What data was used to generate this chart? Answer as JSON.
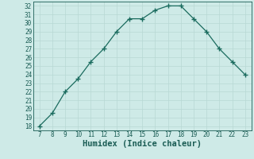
{
  "x": [
    7,
    8,
    9,
    10,
    11,
    12,
    13,
    14,
    15,
    16,
    17,
    18,
    19,
    20,
    21,
    22,
    23
  ],
  "y": [
    18,
    19.5,
    22,
    23.5,
    25.5,
    27,
    29,
    30.5,
    30.5,
    31.5,
    32,
    32,
    30.5,
    29,
    27,
    25.5,
    24
  ],
  "xlabel": "Humidex (Indice chaleur)",
  "xlim_min": 6.5,
  "xlim_max": 23.5,
  "ylim_min": 17.5,
  "ylim_max": 32.5,
  "xticks": [
    7,
    8,
    9,
    10,
    11,
    12,
    13,
    14,
    15,
    16,
    17,
    18,
    19,
    20,
    21,
    22,
    23
  ],
  "yticks": [
    18,
    19,
    20,
    21,
    22,
    23,
    24,
    25,
    26,
    27,
    28,
    29,
    30,
    31,
    32
  ],
  "line_color": "#1a6b5e",
  "marker": "+",
  "bg_color": "#ceeae7",
  "grid_color": "#b8d8d4",
  "tick_label_color": "#1a5c54",
  "axis_label_color": "#1a5c54",
  "tick_fontsize": 5.5,
  "xlabel_fontsize": 7.5
}
